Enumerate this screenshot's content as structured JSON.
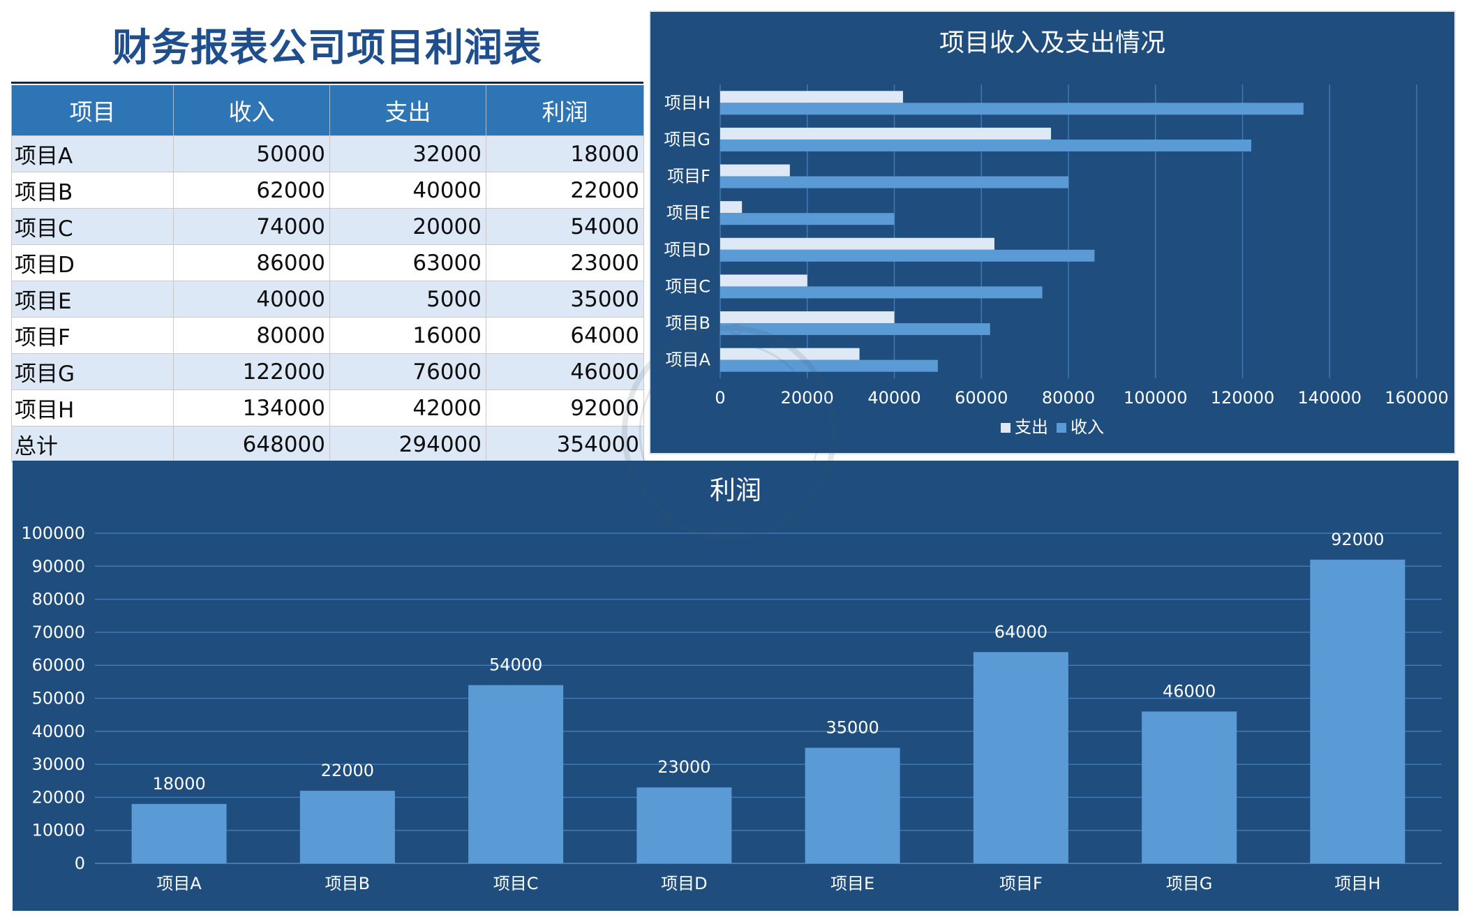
{
  "title": "财务报表公司项目利润表",
  "table": {
    "headers": [
      "项目",
      "收入",
      "支出",
      "利润"
    ],
    "rows": [
      {
        "name": "项目A",
        "income": "50000",
        "expense": "32000",
        "profit": "18000"
      },
      {
        "name": "项目B",
        "income": "62000",
        "expense": "40000",
        "profit": "22000"
      },
      {
        "name": "项目C",
        "income": "74000",
        "expense": "20000",
        "profit": "54000"
      },
      {
        "name": "项目D",
        "income": "86000",
        "expense": "63000",
        "profit": "23000"
      },
      {
        "name": "项目E",
        "income": "40000",
        "expense": "5000",
        "profit": "35000"
      },
      {
        "name": "项目F",
        "income": "80000",
        "expense": "16000",
        "profit": "64000"
      },
      {
        "name": "项目G",
        "income": "122000",
        "expense": "76000",
        "profit": "46000"
      },
      {
        "name": "项目H",
        "income": "134000",
        "expense": "42000",
        "profit": "92000"
      }
    ],
    "total": {
      "name": "总计",
      "income": "648000",
      "expense": "294000",
      "profit": "354000"
    }
  },
  "colors": {
    "panel_bg": "#1f4e7e",
    "bar_income": "#5b9bd5",
    "bar_expense": "#dfe9f5",
    "header_bg": "#2e75b6",
    "title_color": "#1f4e8c"
  },
  "chart_data": [
    {
      "type": "bar",
      "orientation": "horizontal",
      "title": "项目收入及支出情况",
      "categories": [
        "项目A",
        "项目B",
        "项目C",
        "项目D",
        "项目E",
        "项目F",
        "项目G",
        "项目H"
      ],
      "series": [
        {
          "name": "支出",
          "values": [
            32000,
            40000,
            20000,
            63000,
            5000,
            16000,
            76000,
            42000
          ],
          "color": "#dfe9f5"
        },
        {
          "name": "收入",
          "values": [
            50000,
            62000,
            74000,
            86000,
            40000,
            80000,
            122000,
            134000
          ],
          "color": "#5b9bd5"
        }
      ],
      "xlim": [
        0,
        160000
      ],
      "xticks": [
        0,
        20000,
        40000,
        60000,
        80000,
        100000,
        120000,
        140000,
        160000
      ],
      "grid": true,
      "legend": "bottom"
    },
    {
      "type": "bar",
      "title": "利润",
      "categories": [
        "项目A",
        "项目B",
        "项目C",
        "项目D",
        "项目E",
        "项目F",
        "项目G",
        "项目H"
      ],
      "values": [
        18000,
        22000,
        54000,
        23000,
        35000,
        64000,
        46000,
        92000
      ],
      "ylim": [
        0,
        100000
      ],
      "yticks": [
        0,
        10000,
        20000,
        30000,
        40000,
        50000,
        60000,
        70000,
        80000,
        90000,
        100000
      ],
      "data_labels": true,
      "grid": true,
      "color": "#5b9bd5"
    }
  ]
}
